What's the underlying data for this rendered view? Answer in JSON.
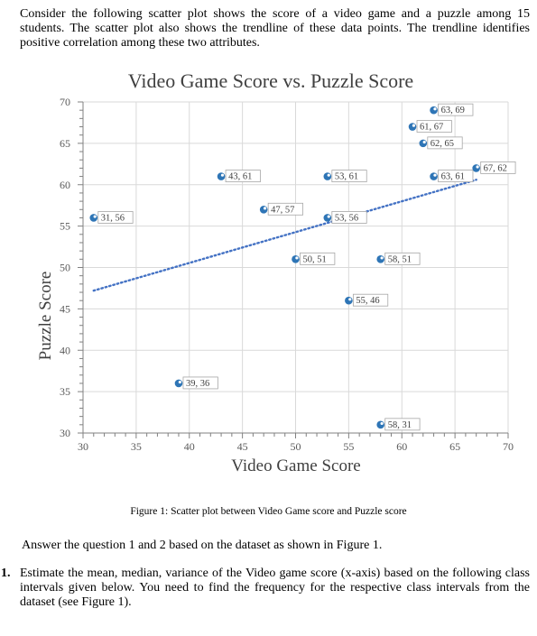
{
  "intro": "Consider the following scatter plot shows the score of a video game and a puzzle among 15 students. The scatter plot also shows the trendline of these data points. The trendline identifies positive correlation among these two attributes.",
  "chart_data": {
    "type": "scatter",
    "title": "Video Game Score vs. Puzzle Score",
    "xlabel": "Video Game Score",
    "ylabel": "Puzzle Score",
    "xlim": [
      30,
      70
    ],
    "ylim": [
      30,
      70
    ],
    "x_ticks": [
      30,
      35,
      40,
      45,
      50,
      55,
      60,
      65,
      70
    ],
    "y_ticks": [
      30,
      35,
      40,
      45,
      50,
      55,
      60,
      65,
      70
    ],
    "grid": true,
    "points": [
      {
        "x": 31,
        "y": 56,
        "label": "31, 56"
      },
      {
        "x": 39,
        "y": 36,
        "label": "39, 36"
      },
      {
        "x": 43,
        "y": 61,
        "label": "43, 61"
      },
      {
        "x": 47,
        "y": 57,
        "label": "47, 57"
      },
      {
        "x": 50,
        "y": 51,
        "label": "50, 51"
      },
      {
        "x": 53,
        "y": 61,
        "label": "53, 61"
      },
      {
        "x": 53,
        "y": 56,
        "label": "53, 56"
      },
      {
        "x": 55,
        "y": 46,
        "label": "55, 46"
      },
      {
        "x": 58,
        "y": 51,
        "label": "58, 51"
      },
      {
        "x": 58,
        "y": 31,
        "label": "58, 31"
      },
      {
        "x": 61,
        "y": 67,
        "label": "61, 67"
      },
      {
        "x": 62,
        "y": 65,
        "label": "62, 65"
      },
      {
        "x": 63,
        "y": 69,
        "label": "63, 69"
      },
      {
        "x": 63,
        "y": 61,
        "label": "63, 61"
      },
      {
        "x": 67,
        "y": 62,
        "label": "67, 62"
      }
    ],
    "trendline": {
      "x": [
        31,
        67
      ],
      "y": [
        47.2,
        60.6
      ],
      "style": "dotted"
    },
    "colors": {
      "marker": "#2e75b6",
      "trendline": "#4472c4",
      "grid": "#d9d9d9",
      "label_border": "#a6a6a6"
    }
  },
  "caption": "Figure 1: Scatter plot between Video Game score and Puzzle score",
  "answer_prompt": "Answer the question 1 and 2 based on the dataset as shown in Figure 1.",
  "question": {
    "number": "1.",
    "text": "Estimate the mean, median, variance of the Video game score (x-axis) based on the following class intervals given below. You need to find the frequency for the respective class intervals from the dataset (see Figure 1)."
  }
}
